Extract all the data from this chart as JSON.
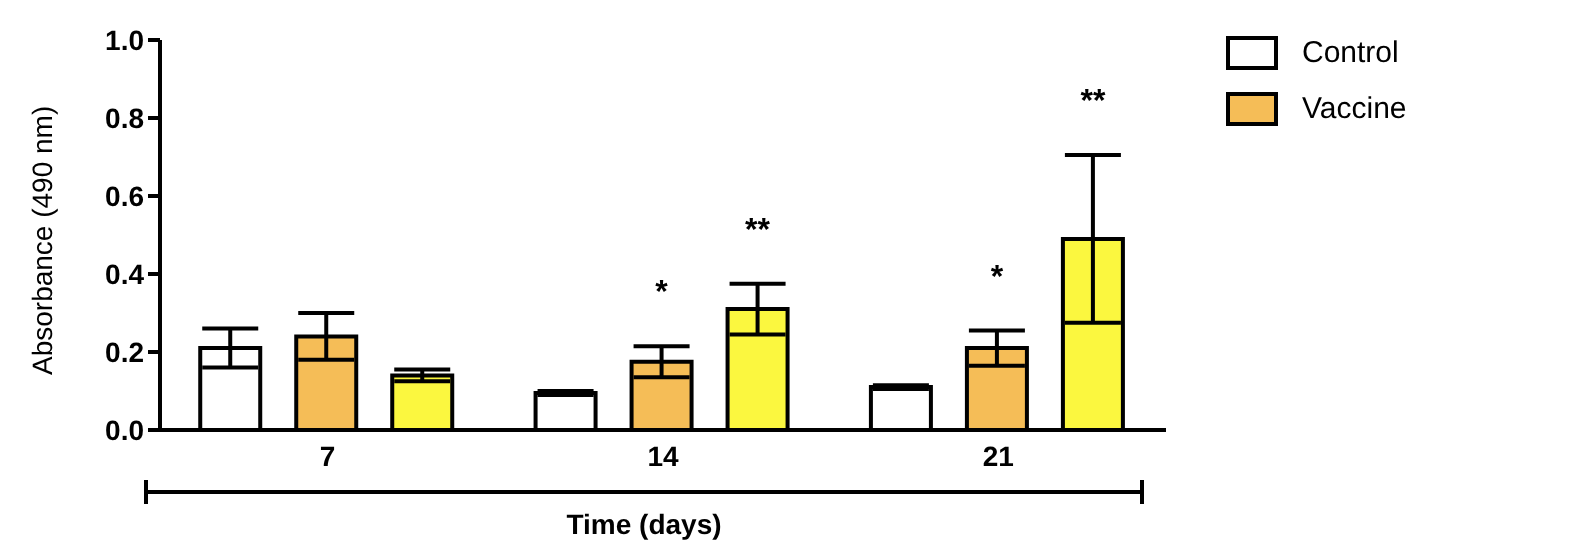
{
  "chart_data": {
    "type": "bar",
    "xlabel": "Time (days)",
    "ylabel": "Absorbance (490 nm)",
    "categories": [
      "7",
      "14",
      "21"
    ],
    "series": [
      {
        "name": "Control",
        "color": "#ffffff",
        "values": [
          0.21,
          0.095,
          0.11
        ],
        "errors": [
          0.05,
          0.005,
          0.005
        ]
      },
      {
        "name": "Vaccine",
        "color": "#f5bd57",
        "values": [
          0.24,
          0.175,
          0.21
        ],
        "errors": [
          0.06,
          0.04,
          0.045
        ]
      },
      {
        "color": "#fbf73f",
        "values": [
          0.14,
          0.31,
          0.49
        ],
        "errors": [
          0.015,
          0.065,
          [
            0.275,
            0.705
          ]
        ]
      }
    ],
    "ylim": [
      0,
      1
    ],
    "yticks": [
      {
        "value": 0,
        "label": "0.0"
      },
      {
        "value": 0.2,
        "label": "0.2"
      },
      {
        "value": 0.4,
        "label": "0.4"
      },
      {
        "value": 0.6,
        "label": "0.6"
      },
      {
        "value": 0.8,
        "label": "0.8"
      },
      {
        "value": 1,
        "label": "1.0"
      }
    ],
    "grid": false,
    "legend": "top right",
    "annotations": [
      {
        "text": "*",
        "x": "14",
        "y": 0.215
      },
      "**",
      {
        "text": "*",
        "x": "21",
        "y": 0.255
      },
      "**"
    ]
  }
}
